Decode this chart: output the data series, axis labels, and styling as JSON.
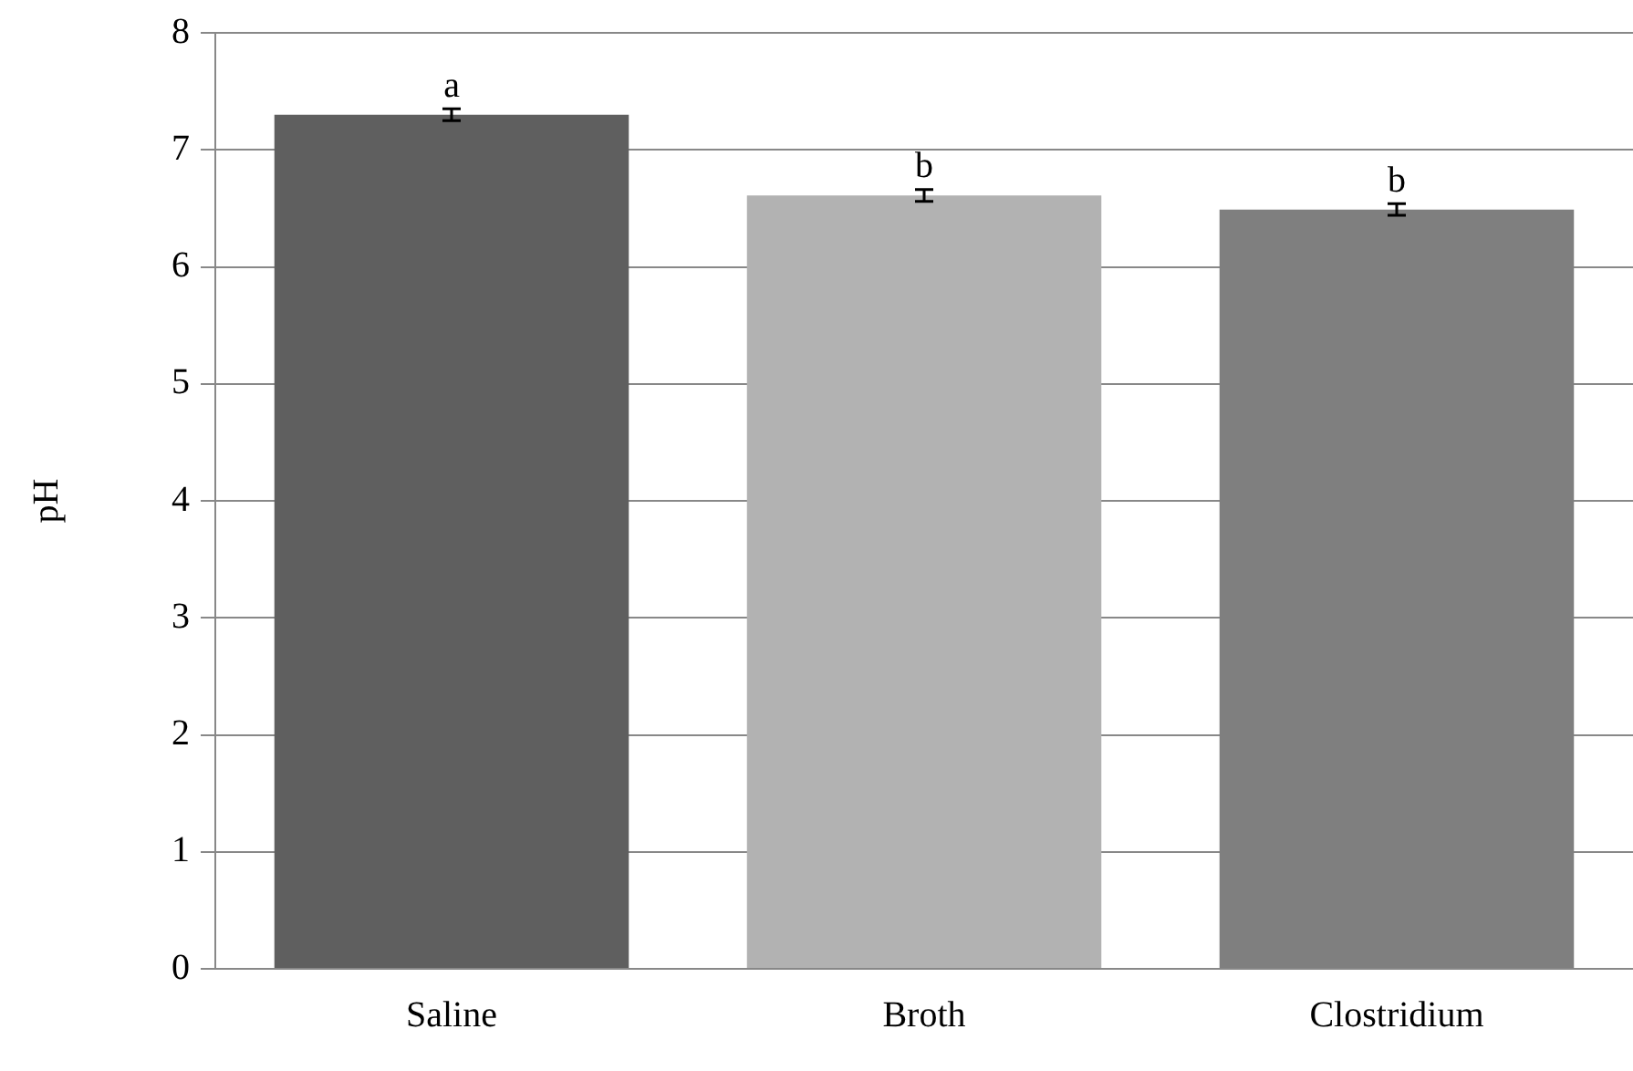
{
  "chart_data": {
    "type": "bar",
    "ylabel": "pH",
    "categories": [
      "Saline",
      "Broth",
      "Clostridium"
    ],
    "values": [
      7.3,
      6.61,
      6.49
    ],
    "errors": [
      0.05,
      0.05,
      0.05
    ],
    "colors": [
      "#5f5f5f",
      "#b2b2b2",
      "#7f7f7f"
    ],
    "ylim": [
      0,
      8
    ],
    "yticks": [
      0,
      1,
      2,
      3,
      4,
      5,
      6,
      7,
      8
    ],
    "grid": "y",
    "legend": false,
    "annotations": [
      "a",
      "b",
      "b"
    ]
  }
}
